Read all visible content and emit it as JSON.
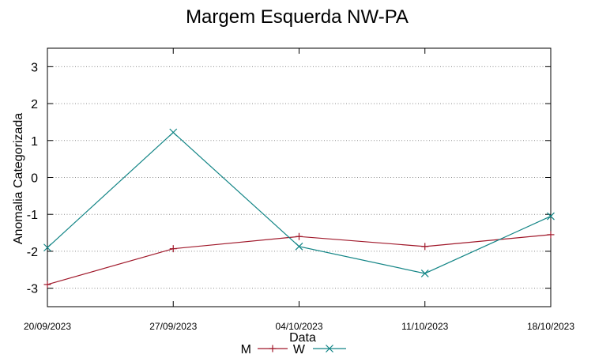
{
  "chart_data": {
    "type": "line",
    "title": "Margem Esquerda NW-PA",
    "xlabel": "Data",
    "ylabel": "Anomalia Categorizada",
    "x": [
      "20/09/2023",
      "27/09/2023",
      "04/10/2023",
      "11/10/2023",
      "18/10/2023"
    ],
    "ylim": [
      -3.5,
      3.5
    ],
    "yticks": [
      -3,
      -2,
      -1,
      0,
      1,
      2,
      3
    ],
    "grid": "horizontal dotted",
    "legend": "bottom-center",
    "series": [
      {
        "name": "M",
        "marker": "+",
        "color": "#a0182a",
        "values": [
          -2.9,
          -1.93,
          -1.6,
          -1.87,
          -1.55
        ]
      },
      {
        "name": "W",
        "marker": "x",
        "color": "#138586",
        "values": [
          -1.9,
          1.22,
          -1.87,
          -2.6,
          -1.05
        ]
      }
    ]
  }
}
